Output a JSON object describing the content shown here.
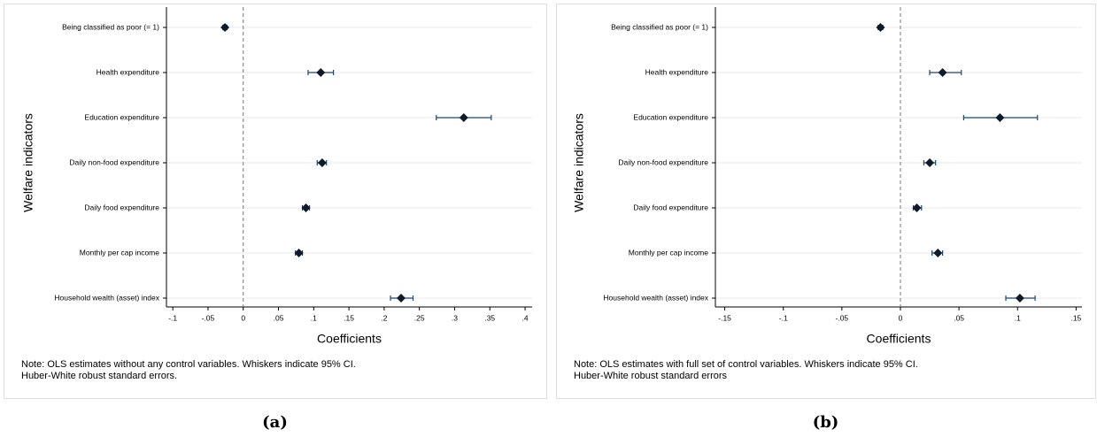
{
  "chart_data": [
    {
      "type": "coefplot",
      "caption": "(a)",
      "y_label": "Welfare indicators",
      "x_label": "Coefficients",
      "note": [
        "Note: OLS estimates without any control variables. Whiskers indicate 95% CI.",
        "Huber-White robust standard errors."
      ],
      "categories": [
        "Being classified as poor (= 1)",
        "Health expenditure",
        "Education expenditure",
        "Daily non-food expenditure",
        "Daily food expenditure",
        "Monthly per cap income",
        "Household wealth (asset) index"
      ],
      "values": [
        -0.026,
        0.11,
        0.313,
        0.112,
        0.089,
        0.079,
        0.224
      ],
      "ci_low": [
        -0.029,
        0.092,
        0.274,
        0.105,
        0.084,
        0.074,
        0.209
      ],
      "ci_high": [
        -0.023,
        0.128,
        0.352,
        0.118,
        0.094,
        0.084,
        0.241
      ],
      "color": "#1a476f",
      "marker_color": "#0d1b2a",
      "reference_line": 0,
      "grid": true,
      "xlim": [
        -0.109,
        0.41
      ],
      "xticks": [
        {
          "value": -0.1,
          "label": "-.1"
        },
        {
          "value": -0.05,
          "label": "-.05"
        },
        0,
        {
          "value": 0.05,
          "label": ".05"
        },
        {
          "value": 0.1,
          "label": ".1"
        },
        {
          "value": 0.15,
          "label": ".15"
        },
        {
          "value": 0.2,
          "label": ".2"
        },
        {
          "value": 0.25,
          "label": ".25"
        },
        {
          "value": 0.3,
          "label": ".3"
        },
        {
          "value": 0.35,
          "label": ".35"
        },
        {
          "value": 0.4,
          "label": ".4"
        }
      ]
    },
    {
      "type": "coefplot",
      "caption": "(b)",
      "y_label": "Welfare indicators",
      "x_label": "Coefficients",
      "note": [
        "Note: OLS estimates with full set of control variables. Whiskers indicate 95% CI.",
        "Huber-White robust standard errors"
      ],
      "categories": [
        "Being classified as poor (= 1)",
        "Health expenditure",
        "Education expenditure",
        "Daily non-food expenditure",
        "Daily food expenditure",
        "Monthly per cap income",
        "Household wealth (asset) index"
      ],
      "values": [
        -0.017,
        0.036,
        0.085,
        0.025,
        0.014,
        0.032,
        0.102
      ],
      "ci_low": [
        -0.019,
        0.025,
        0.054,
        0.02,
        0.011,
        0.027,
        0.09
      ],
      "ci_high": [
        -0.015,
        0.052,
        0.117,
        0.03,
        0.018,
        0.036,
        0.115
      ],
      "color": "#1a476f",
      "marker_color": "#0d1b2a",
      "reference_line": 0,
      "grid": true,
      "xlim": [
        -0.158,
        0.155
      ],
      "xticks": [
        {
          "value": -0.15,
          "label": "-.15"
        },
        {
          "value": -0.1,
          "label": "-.1"
        },
        {
          "value": -0.05,
          "label": "-.05"
        },
        0,
        {
          "value": 0.05,
          "label": ".05"
        },
        {
          "value": 0.1,
          "label": ".1"
        },
        {
          "value": 0.15,
          "label": ".15"
        }
      ]
    }
  ]
}
